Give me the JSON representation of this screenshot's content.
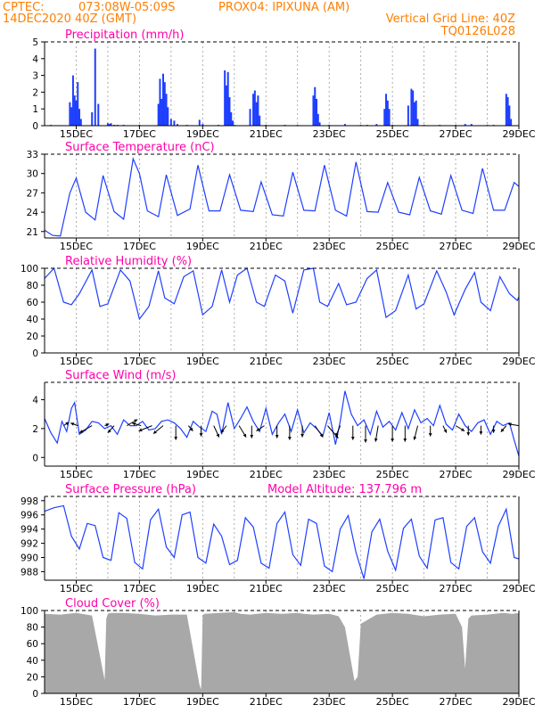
{
  "header": {
    "line1_left": "CPTEC:",
    "line1_coord": "073:08W-05:09S",
    "line1_station": "PROX04: IPIXUNA (AM)",
    "line2_left": "14DEC2020 40Z (GMT)",
    "line2_right": "Vertical Grid Line: 40Z",
    "line3_right": "TQ0126L028"
  },
  "colors": {
    "header": "#ff7f00",
    "title": "#ff00aa",
    "series": "#1f3fff",
    "cloud": "#a8a8a8",
    "arrow": "#000000"
  },
  "time_axis": {
    "start_day": 14.0,
    "end_day": 29.0,
    "ticks": [
      {
        "day": 15,
        "label": "15DEC"
      },
      {
        "day": 17,
        "label": "17DEC"
      },
      {
        "day": 19,
        "label": "19DEC"
      },
      {
        "day": 21,
        "label": "21DEC"
      },
      {
        "day": 23,
        "label": "23DEC"
      },
      {
        "day": 25,
        "label": "25DEC"
      },
      {
        "day": 27,
        "label": "27DEC"
      },
      {
        "day": 29,
        "label": "29DEC"
      }
    ]
  },
  "panels": [
    {
      "id": "precip",
      "title": "Precipitation (mm/h)",
      "extra": "",
      "ylim": [
        0,
        5
      ],
      "yticks": [
        0,
        1,
        2,
        3,
        4,
        5
      ]
    },
    {
      "id": "temp",
      "title": "Surface Temperature (nC)",
      "extra": "",
      "ylim": [
        20,
        33
      ],
      "yticks": [
        21,
        24,
        27,
        30,
        33
      ]
    },
    {
      "id": "rh",
      "title": "Relative Humidity (%)",
      "extra": "",
      "ylim": [
        0,
        100
      ],
      "yticks": [
        0,
        20,
        40,
        60,
        80,
        100
      ]
    },
    {
      "id": "wind",
      "title": "Surface Wind (m/s)",
      "extra": "",
      "ylim": [
        -0.6,
        5.2
      ],
      "yticks": [
        0,
        2,
        4
      ]
    },
    {
      "id": "pres",
      "title": "Surface Pressure (hPa)",
      "extra": "Model Altitude: 137.796 m",
      "ylim": [
        986.8,
        998.6
      ],
      "yticks": [
        988,
        990,
        992,
        994,
        996,
        998
      ]
    },
    {
      "id": "cloud",
      "title": "Cloud Cover (%)",
      "extra": "",
      "ylim": [
        0,
        100
      ],
      "yticks": [
        0,
        20,
        40,
        60,
        80,
        100
      ]
    }
  ],
  "chart_data": [
    {
      "type": "bar",
      "title": "Precipitation (mm/h)",
      "ylabel": "mm/h",
      "ylim": [
        0,
        5
      ],
      "x_days": [
        14.2,
        14.5,
        14.8,
        14.85,
        14.9,
        14.95,
        15.0,
        15.05,
        15.1,
        15.15,
        15.5,
        15.6,
        15.7,
        16.0,
        16.05,
        16.1,
        16.2,
        16.3,
        16.5,
        17.0,
        17.6,
        17.65,
        17.7,
        17.75,
        17.8,
        17.85,
        17.9,
        18.0,
        18.1,
        18.2,
        18.5,
        18.9,
        19.0,
        19.5,
        19.7,
        19.75,
        19.8,
        19.85,
        19.9,
        19.95,
        20.0,
        20.5,
        20.6,
        20.65,
        20.7,
        20.75,
        20.8,
        21.0,
        21.6,
        22.0,
        22.5,
        22.55,
        22.6,
        22.65,
        22.7,
        23.0,
        23.5,
        24.0,
        24.2,
        24.5,
        24.75,
        24.8,
        24.85,
        24.9,
        25.0,
        25.5,
        25.6,
        25.65,
        25.7,
        25.75,
        25.8,
        26.0,
        26.5,
        27.0,
        27.3,
        27.5,
        28.0,
        28.2,
        28.6,
        28.65,
        28.7,
        28.75
      ],
      "values": [
        0.05,
        0.03,
        1.4,
        1.1,
        3.0,
        1.8,
        1.5,
        2.6,
        1.0,
        0.4,
        0.8,
        4.6,
        1.3,
        0.15,
        0.1,
        0.15,
        0.05,
        0.05,
        0.05,
        0.05,
        1.3,
        2.8,
        1.6,
        3.1,
        2.6,
        1.9,
        1.1,
        0.4,
        0.3,
        0.1,
        0.05,
        0.35,
        0.1,
        0.05,
        3.3,
        2.4,
        3.2,
        1.7,
        0.8,
        0.3,
        0.05,
        1.0,
        1.9,
        2.1,
        1.4,
        1.8,
        0.6,
        0.05,
        0.05,
        0.05,
        1.8,
        2.3,
        1.6,
        0.7,
        0.2,
        0.05,
        0.1,
        0.05,
        0.05,
        0.1,
        1.0,
        1.9,
        1.5,
        1.0,
        0.05,
        1.2,
        2.2,
        2.1,
        1.4,
        1.5,
        0.4,
        0.05,
        0.05,
        0.05,
        0.1,
        0.1,
        0.05,
        0.05,
        1.9,
        1.7,
        1.2,
        0.4
      ]
    },
    {
      "type": "line",
      "title": "Surface Temperature (nC)",
      "ylabel": "nC",
      "ylim": [
        20,
        33
      ],
      "x_days": [
        14.0,
        14.25,
        14.5,
        14.8,
        15.0,
        15.3,
        15.6,
        15.85,
        16.2,
        16.5,
        16.8,
        17.0,
        17.25,
        17.6,
        17.85,
        18.2,
        18.6,
        18.85,
        19.2,
        19.55,
        19.85,
        20.2,
        20.6,
        20.85,
        21.2,
        21.55,
        21.85,
        22.2,
        22.55,
        22.85,
        23.2,
        23.55,
        23.85,
        24.2,
        24.55,
        24.85,
        25.2,
        25.55,
        25.85,
        26.2,
        26.55,
        26.85,
        27.2,
        27.55,
        27.85,
        28.2,
        28.55,
        28.85,
        29.0
      ],
      "values": [
        21.2,
        20.4,
        20.3,
        27.0,
        29.3,
        24.0,
        22.8,
        29.7,
        24.1,
        22.9,
        32.3,
        30.0,
        24.2,
        23.3,
        29.8,
        23.5,
        24.5,
        31.3,
        24.2,
        24.2,
        29.8,
        24.3,
        24.1,
        28.7,
        23.6,
        23.4,
        30.2,
        24.3,
        24.2,
        31.3,
        24.3,
        23.4,
        31.8,
        24.1,
        24.0,
        28.6,
        24.0,
        23.6,
        29.4,
        24.2,
        23.7,
        29.7,
        24.3,
        23.8,
        30.8,
        24.3,
        24.3,
        28.6,
        28.0
      ]
    },
    {
      "type": "line",
      "title": "Relative Humidity (%)",
      "ylabel": "%",
      "ylim": [
        0,
        100
      ],
      "x_days": [
        14.0,
        14.3,
        14.6,
        14.85,
        15.1,
        15.5,
        15.75,
        16.0,
        16.4,
        16.7,
        17.0,
        17.3,
        17.6,
        17.8,
        18.1,
        18.4,
        18.7,
        19.0,
        19.3,
        19.6,
        19.85,
        20.1,
        20.4,
        20.7,
        20.95,
        21.3,
        21.6,
        21.85,
        22.2,
        22.5,
        22.7,
        22.95,
        23.3,
        23.55,
        23.85,
        24.2,
        24.5,
        24.8,
        25.1,
        25.5,
        25.75,
        26.0,
        26.4,
        26.7,
        26.95,
        27.3,
        27.6,
        27.8,
        28.1,
        28.4,
        28.7,
        28.95,
        29.0
      ],
      "values": [
        88,
        100,
        60,
        57,
        70,
        98,
        55,
        58,
        98,
        85,
        40,
        55,
        97,
        65,
        58,
        90,
        97,
        45,
        55,
        98,
        60,
        92,
        100,
        60,
        55,
        92,
        85,
        47,
        98,
        100,
        60,
        55,
        82,
        57,
        60,
        88,
        98,
        42,
        50,
        92,
        52,
        58,
        97,
        72,
        45,
        75,
        95,
        60,
        50,
        90,
        70,
        62,
        66
      ]
    },
    {
      "type": "line",
      "title": "Surface Wind (m/s)",
      "ylabel": "m/s",
      "ylim": [
        -0.6,
        5.2
      ],
      "x_days": [
        14.0,
        14.2,
        14.4,
        14.55,
        14.7,
        14.85,
        14.95,
        15.1,
        15.3,
        15.5,
        15.7,
        15.9,
        16.1,
        16.3,
        16.5,
        16.7,
        16.9,
        17.1,
        17.3,
        17.5,
        17.7,
        17.9,
        18.1,
        18.3,
        18.5,
        18.7,
        18.9,
        19.1,
        19.3,
        19.45,
        19.6,
        19.8,
        20.0,
        20.2,
        20.4,
        20.6,
        20.8,
        21.0,
        21.2,
        21.4,
        21.6,
        21.8,
        22.0,
        22.2,
        22.4,
        22.6,
        22.8,
        23.0,
        23.2,
        23.35,
        23.5,
        23.7,
        23.9,
        24.1,
        24.3,
        24.5,
        24.7,
        24.9,
        25.1,
        25.3,
        25.5,
        25.7,
        25.9,
        26.1,
        26.3,
        26.5,
        26.7,
        26.9,
        27.1,
        27.3,
        27.5,
        27.7,
        27.9,
        28.1,
        28.3,
        28.5,
        28.7,
        28.85,
        29.0
      ],
      "values": [
        2.7,
        1.7,
        1.0,
        2.5,
        1.8,
        3.4,
        3.8,
        1.6,
        1.9,
        2.5,
        2.4,
        2.0,
        2.2,
        1.6,
        2.6,
        2.2,
        2.2,
        2.5,
        1.9,
        2.0,
        2.5,
        2.6,
        2.4,
        2.0,
        1.4,
        2.5,
        2.1,
        1.8,
        3.2,
        3.0,
        1.6,
        3.8,
        2.0,
        2.7,
        3.5,
        2.5,
        1.8,
        3.4,
        1.6,
        2.4,
        3.0,
        1.8,
        3.3,
        1.7,
        2.4,
        2.0,
        1.5,
        3.1,
        0.9,
        2.5,
        4.6,
        3.0,
        2.2,
        2.6,
        1.6,
        3.2,
        2.1,
        2.5,
        1.9,
        3.1,
        2.0,
        3.3,
        2.4,
        2.7,
        2.2,
        3.6,
        2.3,
        1.9,
        3.0,
        2.2,
        1.8,
        2.4,
        2.6,
        1.6,
        2.5,
        2.2,
        2.4,
        1.2,
        0.1
      ]
    },
    {
      "type": "line",
      "title": "Surface Pressure (hPa)",
      "ylabel": "hPa",
      "ylim": [
        986.8,
        998.6
      ],
      "x_days": [
        14.0,
        14.3,
        14.6,
        14.85,
        15.1,
        15.35,
        15.6,
        15.85,
        16.1,
        16.35,
        16.6,
        16.85,
        17.1,
        17.35,
        17.6,
        17.85,
        18.1,
        18.35,
        18.6,
        18.85,
        19.1,
        19.35,
        19.6,
        19.85,
        20.1,
        20.35,
        20.6,
        20.85,
        21.1,
        21.35,
        21.6,
        21.85,
        22.1,
        22.35,
        22.6,
        22.85,
        23.1,
        23.35,
        23.6,
        23.85,
        24.1,
        24.35,
        24.6,
        24.85,
        25.1,
        25.35,
        25.6,
        25.85,
        26.1,
        26.35,
        26.6,
        26.85,
        27.1,
        27.35,
        27.6,
        27.85,
        28.1,
        28.35,
        28.6,
        28.85,
        29.0
      ],
      "values": [
        996.5,
        997.0,
        997.3,
        993.0,
        991.2,
        994.8,
        994.5,
        990.0,
        989.6,
        996.3,
        995.5,
        989.3,
        988.4,
        995.3,
        996.8,
        991.5,
        990.0,
        996.0,
        996.4,
        990.0,
        989.2,
        994.7,
        993.0,
        989.0,
        989.6,
        995.6,
        994.3,
        989.2,
        988.5,
        994.8,
        996.4,
        990.4,
        988.9,
        995.4,
        994.8,
        988.8,
        988.0,
        994.0,
        995.9,
        990.7,
        987.0,
        993.6,
        995.4,
        990.9,
        988.2,
        994.1,
        995.4,
        990.2,
        988.5,
        995.3,
        995.6,
        989.3,
        988.4,
        994.4,
        995.6,
        990.8,
        989.2,
        994.4,
        996.8,
        990.0,
        989.8
      ]
    },
    {
      "type": "area",
      "title": "Cloud Cover (%)",
      "ylabel": "%",
      "ylim": [
        0,
        100
      ],
      "x_days": [
        14.0,
        14.5,
        15.0,
        15.5,
        15.9,
        15.95,
        16.0,
        16.1,
        16.5,
        17.0,
        17.5,
        18.0,
        18.5,
        18.9,
        18.95,
        19.0,
        19.05,
        19.5,
        20.0,
        20.2,
        20.5,
        21.0,
        21.5,
        22.0,
        22.2,
        22.5,
        23.0,
        23.3,
        23.5,
        23.8,
        23.9,
        24.0,
        24.5,
        25.0,
        25.5,
        26.0,
        26.5,
        27.0,
        27.2,
        27.3,
        27.4,
        27.5,
        28.0,
        28.5,
        28.8,
        29.0
      ],
      "values": [
        96,
        95,
        97,
        94,
        16,
        90,
        96,
        97,
        97,
        96,
        94,
        95,
        95,
        10,
        5,
        94,
        96,
        97,
        98,
        96,
        95,
        97,
        96,
        97,
        96,
        95,
        96,
        93,
        80,
        15,
        20,
        84,
        95,
        97,
        96,
        93,
        95,
        96,
        80,
        30,
        90,
        94,
        95,
        97,
        96,
        97
      ]
    }
  ],
  "wind_arrows": {
    "x_days": [
      14.6,
      15.05,
      15.5,
      15.9,
      16.2,
      16.6,
      17.05,
      17.4,
      17.75,
      18.15,
      18.55,
      18.95,
      19.35,
      19.75,
      20.15,
      20.55,
      20.95,
      21.35,
      21.75,
      22.15,
      22.55,
      22.95,
      23.35,
      23.75,
      24.15,
      24.55,
      25.0,
      25.4,
      25.8,
      26.2,
      26.6,
      27.0,
      27.4,
      27.8,
      28.2,
      28.6,
      29.0
    ],
    "u": [
      0.6,
      -0.8,
      -1.4,
      0.5,
      -0.7,
      1.2,
      -1.0,
      -1.5,
      -1.1,
      0.0,
      0.5,
      0.0,
      0.6,
      -0.6,
      0.8,
      0.0,
      -0.9,
      0.0,
      0.0,
      0.0,
      0.9,
      1.2,
      -0.5,
      0.0,
      0.0,
      -0.3,
      0.0,
      0.0,
      -0.4,
      0.0,
      0.4,
      1.0,
      0.0,
      0.0,
      0.0,
      -0.6,
      -1.2
    ],
    "v": [
      0.4,
      0.3,
      -0.8,
      0.2,
      -0.8,
      0.7,
      0.3,
      -0.6,
      -0.9,
      -1.6,
      -0.6,
      -1.2,
      -1.3,
      -0.8,
      -1.3,
      -1.4,
      -0.6,
      -1.4,
      -1.6,
      -1.3,
      -1.3,
      -1.4,
      -1.2,
      -1.6,
      -1.9,
      -1.8,
      -1.8,
      -1.8,
      -1.6,
      -1.2,
      -0.8,
      -0.6,
      -1.1,
      -1.0,
      -0.8,
      -0.7,
      0.2
    ]
  }
}
